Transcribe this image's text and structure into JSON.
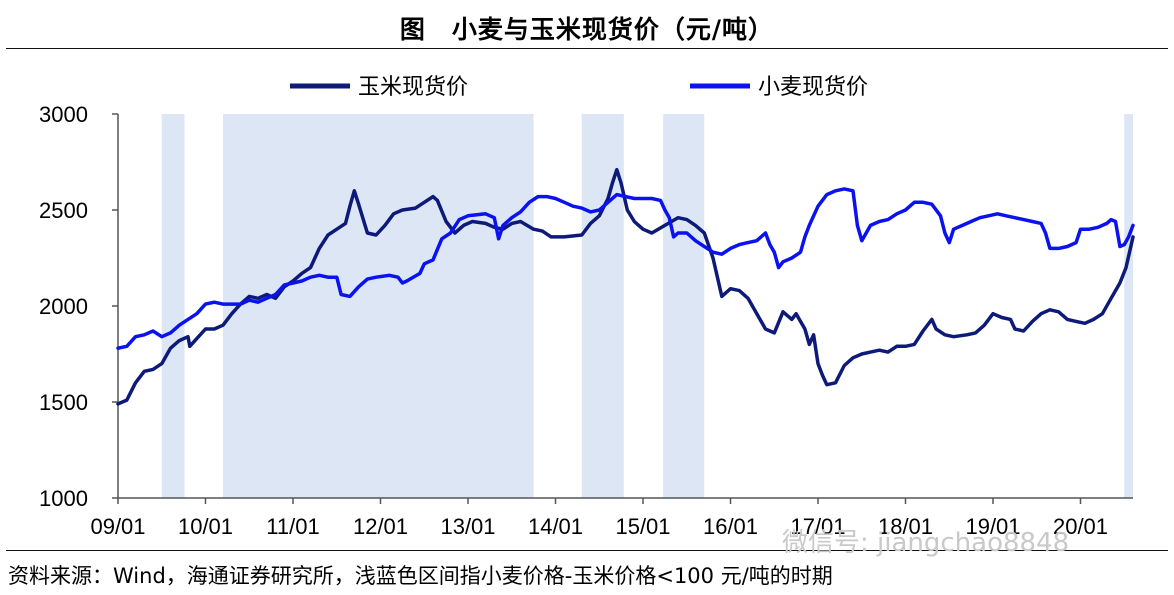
{
  "chart_data": {
    "type": "line",
    "title": "图　小麦与玉米现货价（元/吨）",
    "ylim": [
      1000,
      3000
    ],
    "yticks": [
      "1000",
      "1500",
      "2000",
      "2500",
      "3000"
    ],
    "xlim": [
      0,
      11.6
    ],
    "xticks": [
      "09/01",
      "10/01",
      "11/01",
      "12/01",
      "13/01",
      "14/01",
      "15/01",
      "16/01",
      "17/01",
      "18/01",
      "19/01",
      "20/01"
    ],
    "shaded_periods": [
      [
        0.5,
        0.76
      ],
      [
        1.2,
        4.75
      ],
      [
        5.3,
        5.78
      ],
      [
        6.23,
        6.7
      ],
      [
        11.5,
        11.6
      ]
    ],
    "series": [
      {
        "name": "玉米现货价",
        "color": "#0d1a7a",
        "points": [
          [
            0.0,
            1490
          ],
          [
            0.1,
            1510
          ],
          [
            0.2,
            1600
          ],
          [
            0.3,
            1660
          ],
          [
            0.4,
            1670
          ],
          [
            0.5,
            1700
          ],
          [
            0.6,
            1780
          ],
          [
            0.7,
            1820
          ],
          [
            0.8,
            1840
          ],
          [
            0.82,
            1790
          ],
          [
            0.9,
            1830
          ],
          [
            1.0,
            1880
          ],
          [
            1.1,
            1880
          ],
          [
            1.2,
            1900
          ],
          [
            1.3,
            1960
          ],
          [
            1.4,
            2010
          ],
          [
            1.5,
            2050
          ],
          [
            1.6,
            2040
          ],
          [
            1.7,
            2060
          ],
          [
            1.8,
            2040
          ],
          [
            1.9,
            2100
          ],
          [
            2.0,
            2130
          ],
          [
            2.1,
            2170
          ],
          [
            2.2,
            2200
          ],
          [
            2.3,
            2300
          ],
          [
            2.4,
            2370
          ],
          [
            2.5,
            2400
          ],
          [
            2.6,
            2430
          ],
          [
            2.65,
            2520
          ],
          [
            2.7,
            2600
          ],
          [
            2.75,
            2530
          ],
          [
            2.85,
            2380
          ],
          [
            2.95,
            2370
          ],
          [
            3.05,
            2420
          ],
          [
            3.15,
            2480
          ],
          [
            3.25,
            2500
          ],
          [
            3.4,
            2510
          ],
          [
            3.5,
            2540
          ],
          [
            3.6,
            2570
          ],
          [
            3.65,
            2550
          ],
          [
            3.75,
            2440
          ],
          [
            3.85,
            2380
          ],
          [
            3.95,
            2420
          ],
          [
            4.05,
            2440
          ],
          [
            4.2,
            2430
          ],
          [
            4.3,
            2410
          ],
          [
            4.4,
            2400
          ],
          [
            4.5,
            2430
          ],
          [
            4.6,
            2440
          ],
          [
            4.75,
            2400
          ],
          [
            4.85,
            2390
          ],
          [
            4.95,
            2360
          ],
          [
            5.1,
            2360
          ],
          [
            5.3,
            2370
          ],
          [
            5.4,
            2430
          ],
          [
            5.5,
            2470
          ],
          [
            5.6,
            2560
          ],
          [
            5.65,
            2640
          ],
          [
            5.7,
            2710
          ],
          [
            5.75,
            2640
          ],
          [
            5.82,
            2500
          ],
          [
            5.9,
            2440
          ],
          [
            6.0,
            2400
          ],
          [
            6.1,
            2380
          ],
          [
            6.25,
            2420
          ],
          [
            6.4,
            2460
          ],
          [
            6.5,
            2450
          ],
          [
            6.6,
            2420
          ],
          [
            6.7,
            2380
          ],
          [
            6.8,
            2250
          ],
          [
            6.9,
            2050
          ],
          [
            7.0,
            2090
          ],
          [
            7.1,
            2080
          ],
          [
            7.2,
            2040
          ],
          [
            7.3,
            1960
          ],
          [
            7.4,
            1880
          ],
          [
            7.5,
            1860
          ],
          [
            7.6,
            1970
          ],
          [
            7.7,
            1930
          ],
          [
            7.75,
            1960
          ],
          [
            7.85,
            1880
          ],
          [
            7.9,
            1800
          ],
          [
            7.95,
            1850
          ],
          [
            8.0,
            1700
          ],
          [
            8.05,
            1640
          ],
          [
            8.1,
            1590
          ],
          [
            8.2,
            1600
          ],
          [
            8.3,
            1690
          ],
          [
            8.4,
            1730
          ],
          [
            8.5,
            1750
          ],
          [
            8.6,
            1760
          ],
          [
            8.7,
            1770
          ],
          [
            8.8,
            1760
          ],
          [
            8.9,
            1790
          ],
          [
            9.0,
            1790
          ],
          [
            9.1,
            1800
          ],
          [
            9.2,
            1870
          ],
          [
            9.3,
            1930
          ],
          [
            9.35,
            1880
          ],
          [
            9.45,
            1850
          ],
          [
            9.55,
            1840
          ],
          [
            9.7,
            1850
          ],
          [
            9.8,
            1860
          ],
          [
            9.9,
            1900
          ],
          [
            10.0,
            1960
          ],
          [
            10.1,
            1940
          ],
          [
            10.2,
            1930
          ],
          [
            10.25,
            1880
          ],
          [
            10.35,
            1870
          ],
          [
            10.45,
            1920
          ],
          [
            10.55,
            1960
          ],
          [
            10.65,
            1980
          ],
          [
            10.75,
            1970
          ],
          [
            10.85,
            1930
          ],
          [
            10.95,
            1920
          ],
          [
            11.05,
            1910
          ],
          [
            11.15,
            1930
          ],
          [
            11.25,
            1960
          ],
          [
            11.35,
            2040
          ],
          [
            11.45,
            2120
          ],
          [
            11.52,
            2200
          ],
          [
            11.57,
            2300
          ],
          [
            11.6,
            2360
          ]
        ]
      },
      {
        "name": "小麦现货价",
        "color": "#0a12f0",
        "points": [
          [
            0.0,
            1780
          ],
          [
            0.1,
            1790
          ],
          [
            0.2,
            1840
          ],
          [
            0.3,
            1850
          ],
          [
            0.4,
            1870
          ],
          [
            0.5,
            1840
          ],
          [
            0.6,
            1860
          ],
          [
            0.7,
            1900
          ],
          [
            0.8,
            1930
          ],
          [
            0.9,
            1960
          ],
          [
            1.0,
            2010
          ],
          [
            1.1,
            2020
          ],
          [
            1.2,
            2010
          ],
          [
            1.4,
            2010
          ],
          [
            1.5,
            2030
          ],
          [
            1.6,
            2020
          ],
          [
            1.7,
            2040
          ],
          [
            1.8,
            2060
          ],
          [
            1.9,
            2110
          ],
          [
            2.0,
            2120
          ],
          [
            2.1,
            2130
          ],
          [
            2.2,
            2150
          ],
          [
            2.3,
            2160
          ],
          [
            2.4,
            2150
          ],
          [
            2.5,
            2150
          ],
          [
            2.55,
            2060
          ],
          [
            2.65,
            2050
          ],
          [
            2.75,
            2100
          ],
          [
            2.85,
            2140
          ],
          [
            2.95,
            2150
          ],
          [
            3.1,
            2160
          ],
          [
            3.2,
            2150
          ],
          [
            3.25,
            2120
          ],
          [
            3.3,
            2130
          ],
          [
            3.45,
            2170
          ],
          [
            3.5,
            2220
          ],
          [
            3.6,
            2240
          ],
          [
            3.7,
            2350
          ],
          [
            3.8,
            2380
          ],
          [
            3.9,
            2450
          ],
          [
            4.0,
            2470
          ],
          [
            4.2,
            2480
          ],
          [
            4.3,
            2460
          ],
          [
            4.35,
            2350
          ],
          [
            4.4,
            2420
          ],
          [
            4.5,
            2460
          ],
          [
            4.6,
            2490
          ],
          [
            4.7,
            2540
          ],
          [
            4.8,
            2570
          ],
          [
            4.9,
            2570
          ],
          [
            5.0,
            2560
          ],
          [
            5.1,
            2540
          ],
          [
            5.2,
            2520
          ],
          [
            5.3,
            2510
          ],
          [
            5.4,
            2490
          ],
          [
            5.5,
            2500
          ],
          [
            5.6,
            2540
          ],
          [
            5.7,
            2580
          ],
          [
            5.8,
            2570
          ],
          [
            5.9,
            2560
          ],
          [
            6.0,
            2560
          ],
          [
            6.1,
            2560
          ],
          [
            6.2,
            2550
          ],
          [
            6.25,
            2500
          ],
          [
            6.3,
            2460
          ],
          [
            6.35,
            2360
          ],
          [
            6.4,
            2380
          ],
          [
            6.5,
            2380
          ],
          [
            6.6,
            2340
          ],
          [
            6.7,
            2310
          ],
          [
            6.8,
            2280
          ],
          [
            6.9,
            2270
          ],
          [
            7.0,
            2300
          ],
          [
            7.1,
            2320
          ],
          [
            7.2,
            2330
          ],
          [
            7.3,
            2340
          ],
          [
            7.4,
            2380
          ],
          [
            7.45,
            2320
          ],
          [
            7.5,
            2280
          ],
          [
            7.55,
            2200
          ],
          [
            7.6,
            2230
          ],
          [
            7.7,
            2250
          ],
          [
            7.8,
            2280
          ],
          [
            7.85,
            2360
          ],
          [
            7.9,
            2420
          ],
          [
            8.0,
            2520
          ],
          [
            8.1,
            2580
          ],
          [
            8.2,
            2600
          ],
          [
            8.3,
            2610
          ],
          [
            8.4,
            2600
          ],
          [
            8.45,
            2420
          ],
          [
            8.5,
            2340
          ],
          [
            8.6,
            2420
          ],
          [
            8.7,
            2440
          ],
          [
            8.8,
            2450
          ],
          [
            8.9,
            2480
          ],
          [
            9.0,
            2500
          ],
          [
            9.1,
            2540
          ],
          [
            9.2,
            2540
          ],
          [
            9.3,
            2530
          ],
          [
            9.4,
            2470
          ],
          [
            9.45,
            2380
          ],
          [
            9.5,
            2330
          ],
          [
            9.55,
            2400
          ],
          [
            9.65,
            2420
          ],
          [
            9.75,
            2440
          ],
          [
            9.85,
            2460
          ],
          [
            9.95,
            2470
          ],
          [
            10.05,
            2480
          ],
          [
            10.15,
            2470
          ],
          [
            10.25,
            2460
          ],
          [
            10.35,
            2450
          ],
          [
            10.45,
            2440
          ],
          [
            10.55,
            2430
          ],
          [
            10.6,
            2380
          ],
          [
            10.65,
            2300
          ],
          [
            10.75,
            2300
          ],
          [
            10.85,
            2310
          ],
          [
            10.95,
            2330
          ],
          [
            11.0,
            2400
          ],
          [
            11.1,
            2400
          ],
          [
            11.2,
            2410
          ],
          [
            11.3,
            2430
          ],
          [
            11.35,
            2450
          ],
          [
            11.4,
            2440
          ],
          [
            11.45,
            2310
          ],
          [
            11.5,
            2320
          ],
          [
            11.55,
            2360
          ],
          [
            11.6,
            2420
          ]
        ]
      }
    ]
  },
  "footer": {
    "source": "资料来源：Wind，海通证券研究所，浅蓝色区间指小麦价格-玉米价格<100 元/吨的时期",
    "watermark": "微信号: jiangchao8848"
  }
}
